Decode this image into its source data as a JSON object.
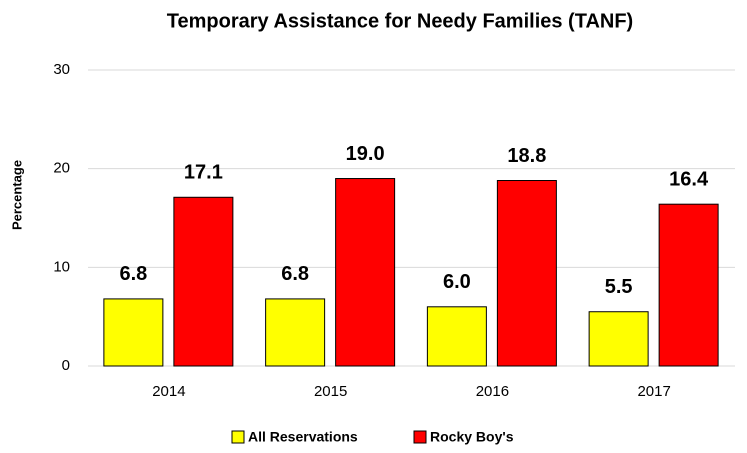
{
  "chart_data": {
    "type": "bar",
    "title": "Temporary Assistance for Needy Families (TANF)",
    "y_label": "Percentage",
    "categories": [
      "2014",
      "2015",
      "2016",
      "2017"
    ],
    "series": [
      {
        "name": "All Reservations",
        "color": "#ffff00",
        "values": [
          6.8,
          6.8,
          6.0,
          5.5
        ],
        "value_labels": [
          "6.8",
          "6.8",
          "6.0",
          "5.5"
        ]
      },
      {
        "name": "Rocky Boy's",
        "color": "#ff0000",
        "values": [
          17.1,
          19.0,
          18.8,
          16.4
        ],
        "value_labels": [
          "17.1",
          "19.0",
          "18.8",
          "16.4"
        ]
      }
    ],
    "ylim": [
      0,
      30
    ],
    "yticks": [
      0,
      10,
      20,
      30
    ],
    "grid": true,
    "legend": "bottom"
  }
}
